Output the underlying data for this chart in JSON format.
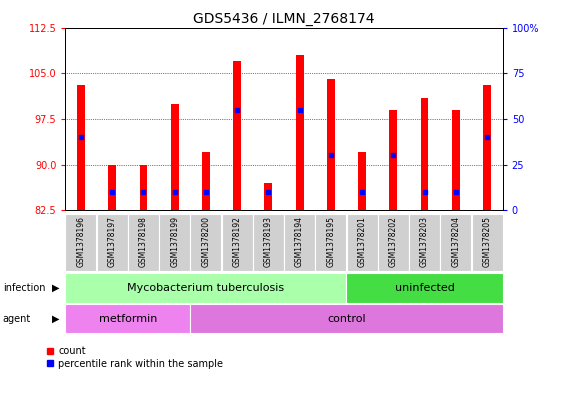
{
  "title": "GDS5436 / ILMN_2768174",
  "samples": [
    "GSM1378196",
    "GSM1378197",
    "GSM1378198",
    "GSM1378199",
    "GSM1378200",
    "GSM1378192",
    "GSM1378193",
    "GSM1378194",
    "GSM1378195",
    "GSM1378201",
    "GSM1378202",
    "GSM1378203",
    "GSM1378204",
    "GSM1378205"
  ],
  "count_values": [
    103,
    90,
    90,
    100,
    92,
    107,
    87,
    108,
    104,
    92,
    99,
    101,
    99,
    103
  ],
  "percentile_values": [
    40,
    10,
    10,
    10,
    10,
    55,
    10,
    55,
    30,
    10,
    30,
    10,
    10,
    40
  ],
  "ylim_left": [
    82.5,
    112.5
  ],
  "ylim_right": [
    0,
    100
  ],
  "yticks_left": [
    82.5,
    90,
    97.5,
    105,
    112.5
  ],
  "yticks_right": [
    0,
    25,
    50,
    75,
    100
  ],
  "ybase": 82.5,
  "infection_groups": [
    {
      "label": "Mycobacterium tuberculosis",
      "start": 0,
      "end": 9,
      "color": "#AAFFAA"
    },
    {
      "label": "uninfected",
      "start": 9,
      "end": 14,
      "color": "#44DD44"
    }
  ],
  "agent_groups": [
    {
      "label": "metformin",
      "start": 0,
      "end": 4,
      "color": "#EE82EE"
    },
    {
      "label": "control",
      "start": 4,
      "end": 14,
      "color": "#DD77DD"
    }
  ],
  "bar_color": "#FF0000",
  "dot_color": "#0000FF",
  "bar_width": 0.25,
  "tick_fontsize": 7,
  "sample_fontsize": 5.5,
  "label_row_fontsize": 8,
  "legend_fontsize": 7,
  "title_fontsize": 10
}
